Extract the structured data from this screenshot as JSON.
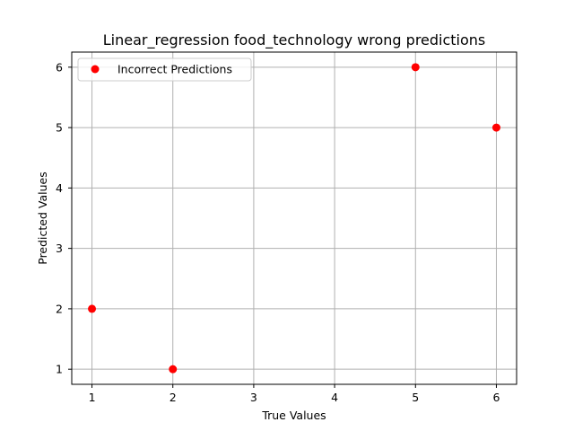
{
  "chart_data": {
    "type": "scatter",
    "title": "Linear_regression food_technology wrong predictions",
    "xlabel": "True Values",
    "ylabel": "Predicted Values",
    "xlim": [
      0.75,
      6.25
    ],
    "ylim": [
      0.75,
      6.25
    ],
    "xticks": [
      1,
      2,
      3,
      4,
      5,
      6
    ],
    "yticks": [
      1,
      2,
      3,
      4,
      5,
      6
    ],
    "grid": true,
    "legend_position": "upper-left",
    "series": [
      {
        "name": "Incorrect Predictions",
        "color": "#ff0000",
        "x": [
          1,
          2,
          5,
          6
        ],
        "y": [
          2,
          1,
          6,
          5
        ]
      }
    ]
  }
}
